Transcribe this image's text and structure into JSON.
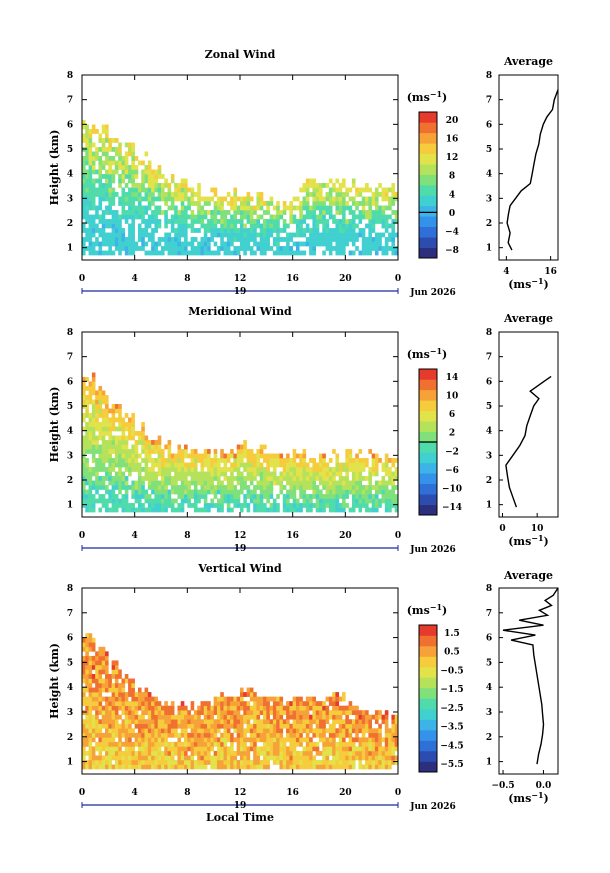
{
  "chart_data": [
    {
      "type": "heatmap",
      "title": "Zonal Wind",
      "ylabel": "Height (km)",
      "xlabel": "",
      "x_range": [
        0,
        24
      ],
      "y_range": [
        0.5,
        8
      ],
      "x_ticks": [
        "0",
        "4",
        "8",
        "12",
        "16",
        "20",
        "0"
      ],
      "y_ticks": [
        "1",
        "2",
        "3",
        "4",
        "5",
        "6",
        "7",
        "8"
      ],
      "date_marker": "19",
      "date_label": "Jun 2026",
      "colorbar": {
        "unit_base": "(ms",
        "unit_exp": "−1",
        "ticks": [
          "20",
          "16",
          "12",
          "8",
          "4",
          "0",
          "−4",
          "−8"
        ],
        "range": [
          -10,
          22
        ],
        "zero_line": 0
      },
      "field": {
        "valid_height_top": [
          6.0,
          5.8,
          5.4,
          5.0,
          4.6,
          4.2,
          3.8,
          3.6,
          3.4,
          3.2,
          3.1,
          3.1,
          3.0,
          2.9,
          2.8,
          2.7,
          3.4,
          3.5,
          3.7,
          3.6,
          3.5,
          3.4,
          3.4,
          3.3
        ],
        "typical_values_low_to_high": [
          2,
          3,
          5,
          8,
          11,
          14
        ],
        "gap_fraction": 0.22
      },
      "profile": {
        "title": "Average",
        "xlabel_base": "(ms",
        "xlabel_exp": "−1",
        "x_ticks": [
          "4",
          "16"
        ],
        "x_range": [
          2,
          18
        ],
        "heights": [
          0.9,
          1.2,
          1.6,
          2.0,
          2.4,
          2.7,
          3.0,
          3.3,
          3.6,
          4.0,
          4.4,
          4.8,
          5.2,
          5.6,
          6.0,
          6.3,
          6.6,
          7.0,
          7.4
        ],
        "values": [
          5.5,
          4.5,
          5.0,
          4.2,
          4.6,
          5.0,
          6.5,
          8.0,
          10.5,
          11.0,
          11.5,
          12.0,
          12.8,
          13.2,
          14.0,
          15.0,
          16.5,
          17.0,
          18.0
        ]
      }
    },
    {
      "type": "heatmap",
      "title": "Meridional Wind",
      "ylabel": "Height (km)",
      "xlabel": "",
      "x_range": [
        0,
        24
      ],
      "y_range": [
        0.5,
        8
      ],
      "x_ticks": [
        "0",
        "4",
        "8",
        "12",
        "16",
        "20",
        "0"
      ],
      "y_ticks": [
        "1",
        "2",
        "3",
        "4",
        "5",
        "6",
        "7",
        "8"
      ],
      "date_marker": "19",
      "date_label": "Jun 2026",
      "colorbar": {
        "unit_base": "(ms",
        "unit_exp": "−1",
        "ticks": [
          "14",
          "10",
          "6",
          "2",
          "−2",
          "−6",
          "−10",
          "−14"
        ],
        "range": [
          -16,
          16
        ],
        "zero_line": 0
      },
      "field": {
        "valid_height_top": [
          6.0,
          5.6,
          5.0,
          4.5,
          4.0,
          3.6,
          3.3,
          3.2,
          3.1,
          3.1,
          3.1,
          3.2,
          3.3,
          3.2,
          3.1,
          3.0,
          3.0,
          2.9,
          2.8,
          2.9,
          3.1,
          3.0,
          3.0,
          2.9
        ],
        "typical_values_low_to_high": [
          -2,
          1,
          3,
          5,
          8,
          11
        ],
        "gap_fraction": 0.18
      },
      "profile": {
        "title": "Average",
        "xlabel_base": "(ms",
        "xlabel_exp": "−1",
        "x_ticks": [
          "0",
          "10"
        ],
        "x_range": [
          -1,
          16
        ],
        "heights": [
          0.9,
          1.3,
          1.7,
          2.1,
          2.6,
          3.0,
          3.4,
          3.8,
          4.2,
          4.6,
          5.0,
          5.3,
          5.6,
          5.9,
          6.2
        ],
        "values": [
          4.0,
          3.0,
          2.0,
          1.5,
          1.0,
          3.0,
          5.0,
          6.5,
          7.0,
          8.0,
          9.0,
          10.5,
          8.0,
          11.0,
          14.0
        ]
      }
    },
    {
      "type": "heatmap",
      "title": "Vertical Wind",
      "ylabel": "Height (km)",
      "xlabel": "Local Time",
      "x_range": [
        0,
        24
      ],
      "y_range": [
        0.5,
        8
      ],
      "x_ticks": [
        "0",
        "4",
        "8",
        "12",
        "16",
        "20",
        "0"
      ],
      "y_ticks": [
        "1",
        "2",
        "3",
        "4",
        "5",
        "6",
        "7",
        "8"
      ],
      "date_marker": "19",
      "date_label": "Jun 2026",
      "colorbar": {
        "unit_base": "(ms",
        "unit_exp": "−1",
        "ticks": [
          "1.5",
          "0.5",
          "−0.5",
          "−1.5",
          "−2.5",
          "−3.5",
          "−4.5",
          "−5.5"
        ],
        "range": [
          -6,
          2
        ],
        "zero_line": null
      },
      "field": {
        "valid_height_top": [
          6.0,
          5.5,
          4.8,
          4.3,
          3.9,
          3.6,
          3.3,
          3.2,
          3.1,
          3.3,
          3.5,
          3.6,
          3.8,
          3.6,
          3.5,
          3.4,
          3.6,
          3.5,
          3.5,
          3.6,
          3.3,
          3.1,
          3.0,
          2.9
        ],
        "typical_values_low_to_high": [
          0.0,
          0.3,
          0.5,
          0.7,
          1.0
        ],
        "gap_fraction": 0.08
      },
      "profile": {
        "title": "Average",
        "xlabel_base": "(ms",
        "xlabel_exp": "−1",
        "x_ticks": [
          "−0.5",
          "0.0"
        ],
        "x_range": [
          -0.55,
          0.18
        ],
        "heights": [
          0.9,
          1.3,
          1.7,
          2.1,
          2.5,
          2.9,
          3.3,
          3.7,
          4.1,
          4.5,
          4.9,
          5.3,
          5.7,
          5.9,
          6.1,
          6.3,
          6.5,
          6.7,
          6.9,
          7.1,
          7.3,
          7.5,
          7.7,
          8.0
        ],
        "values": [
          -0.08,
          -0.06,
          -0.03,
          -0.01,
          0.0,
          -0.01,
          -0.02,
          -0.04,
          -0.06,
          -0.08,
          -0.1,
          -0.12,
          -0.13,
          -0.4,
          -0.1,
          -0.5,
          0.0,
          -0.3,
          0.05,
          -0.05,
          0.1,
          0.02,
          0.12,
          0.18
        ]
      }
    }
  ],
  "colors": {
    "colormap": [
      "#2c2f7e",
      "#2d4cb0",
      "#2f6fd8",
      "#3592ea",
      "#3cb4e8",
      "#41d0d0",
      "#4fdcaa",
      "#80e07a",
      "#b4e25a",
      "#e2e24a",
      "#f6cc3c",
      "#f6a238",
      "#f07030",
      "#e63a2c"
    ],
    "date_axis": "#1a2aa0"
  }
}
